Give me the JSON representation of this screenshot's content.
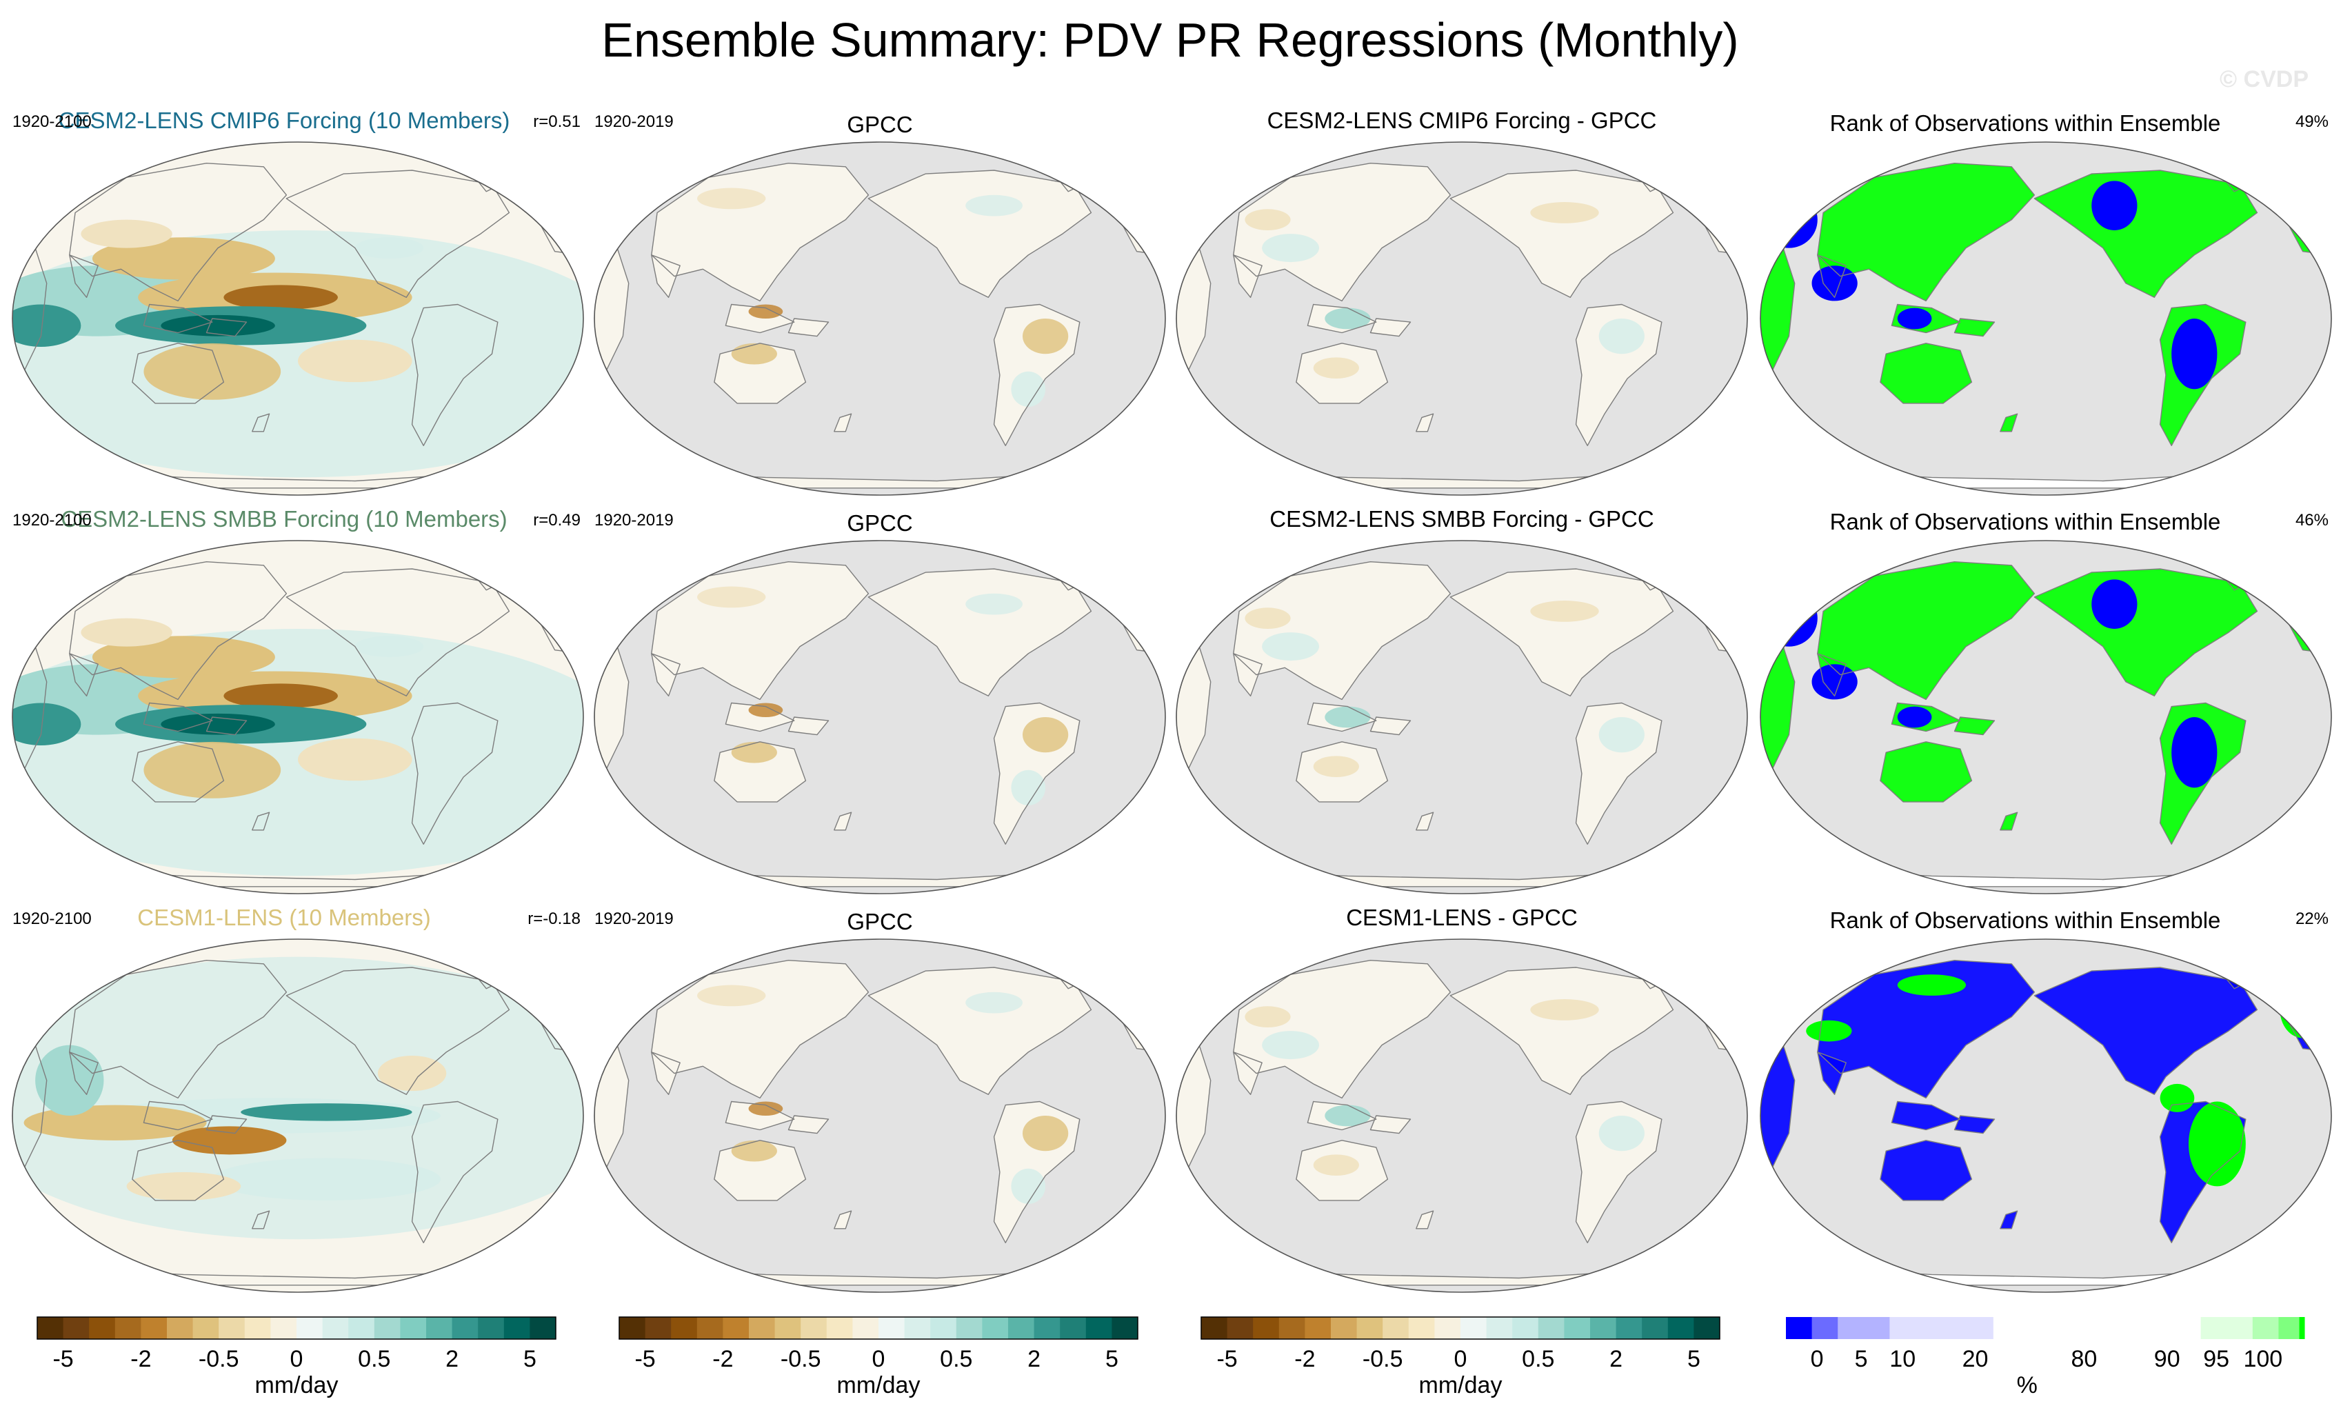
{
  "title": "Ensemble Summary: PDV PR Regressions (Monthly)",
  "watermark": "© CVDP",
  "rows": [
    {
      "model_title": "CESM2-LENS CMIP6 Forcing (10 Members)",
      "model_color": "#1a6e8e",
      "model_years": "1920-2100",
      "pattern_corr": "r=0.51",
      "obs_title": "GPCC",
      "obs_years": "1920-2019",
      "diff_title": "CESM2-LENS CMIP6 Forcing - GPCC",
      "rank_title": "Rank of Observations within Ensemble",
      "rank_pct": "49%"
    },
    {
      "model_title": "CESM2-LENS SMBB Forcing (10 Members)",
      "model_color": "#5a8a68",
      "model_years": "1920-2100",
      "pattern_corr": "r=0.49",
      "obs_title": "GPCC",
      "obs_years": "1920-2019",
      "diff_title": "CESM2-LENS SMBB Forcing - GPCC",
      "rank_title": "Rank of Observations within Ensemble",
      "rank_pct": "46%"
    },
    {
      "model_title": "CESM1-LENS (10 Members)",
      "model_color": "#d9c37a",
      "model_years": "1920-2100",
      "pattern_corr": "r=-0.18",
      "obs_title": "GPCC",
      "obs_years": "1920-2019",
      "diff_title": "CESM1-LENS - GPCC",
      "rank_title": "Rank of Observations within Ensemble",
      "rank_pct": "22%"
    }
  ],
  "colorbars": {
    "precip": {
      "units": "mm/day",
      "tick_labels": [
        "-5",
        "-2",
        "-0.5",
        "0",
        "0.5",
        "2",
        "5"
      ],
      "tick_boundary_index": [
        1,
        4,
        7,
        10,
        13,
        16,
        19
      ],
      "colors": [
        "#543005",
        "#704010",
        "#8c510a",
        "#a66a1e",
        "#bf812d",
        "#d4a95e",
        "#dfc27d",
        "#ecd9a8",
        "#f6e8c3",
        "#f7f1e0",
        "#eef6f4",
        "#d9efeb",
        "#c7eae5",
        "#a3d9d0",
        "#80cdc1",
        "#5ab4a8",
        "#35978f",
        "#1f8077",
        "#01665e",
        "#014a42"
      ]
    },
    "rank": {
      "units": "%",
      "tick_labels": [
        "0",
        "5",
        "10",
        "20",
        "80",
        "90",
        "95",
        "100"
      ],
      "tick_fraction": [
        0.0,
        0.05,
        0.1,
        0.2,
        0.8,
        0.9,
        0.95,
        1.0
      ],
      "segments": [
        {
          "from": 0,
          "to": 5,
          "color": "#0000ff"
        },
        {
          "from": 5,
          "to": 10,
          "color": "#6b6bff"
        },
        {
          "from": 10,
          "to": 20,
          "color": "#b3b3ff"
        },
        {
          "from": 20,
          "to": 40,
          "color": "#e0e0ff"
        },
        {
          "from": 40,
          "to": 80,
          "color": "#ffffff"
        },
        {
          "from": 80,
          "to": 90,
          "color": "#e0ffe0"
        },
        {
          "from": 90,
          "to": 95,
          "color": "#b3ffb3"
        },
        {
          "from": 95,
          "to": 99,
          "color": "#7fff7f"
        },
        {
          "from": 99,
          "to": 100,
          "color": "#00ff00"
        }
      ]
    }
  },
  "chart_data": {
    "type": "heatmap",
    "projection": "Robinson (Pacific-centred)",
    "variable": "PR regression onto PDV",
    "units": "mm/day",
    "columns": [
      "model ensemble mean",
      "observations (GPCC)",
      "model minus observations",
      "rank of observations within ensemble (%)"
    ],
    "pattern_correlations": [
      {
        "model": "CESM2-LENS CMIP6 Forcing",
        "r": 0.51,
        "obs_rank_pct": 49
      },
      {
        "model": "CESM2-LENS SMBB Forcing",
        "r": 0.49,
        "obs_rank_pct": 46
      },
      {
        "model": "CESM1-LENS",
        "r": -0.18,
        "obs_rank_pct": 22
      }
    ],
    "colorbar_levels_mm_per_day": [
      -5,
      -2,
      -0.5,
      0,
      0.5,
      2,
      5
    ],
    "rank_levels_pct": [
      0,
      5,
      10,
      20,
      80,
      90,
      95,
      100
    ]
  },
  "map_colors": {
    "ocean_missing": "#e3e3e3",
    "coast": "#7d7d7d",
    "neutral": "#f8f5ec",
    "light_brown": "#f0e2c0",
    "mid_brown": "#dfc27d",
    "dark_brown": "#bf812d",
    "deep_brown": "#a66a1e",
    "light_teal": "#d7eeea",
    "mid_teal": "#a3d9d0",
    "dark_teal": "#35978f",
    "deep_teal": "#01665e",
    "rank_blue": "#0000ff",
    "rank_green": "#00ff00"
  }
}
